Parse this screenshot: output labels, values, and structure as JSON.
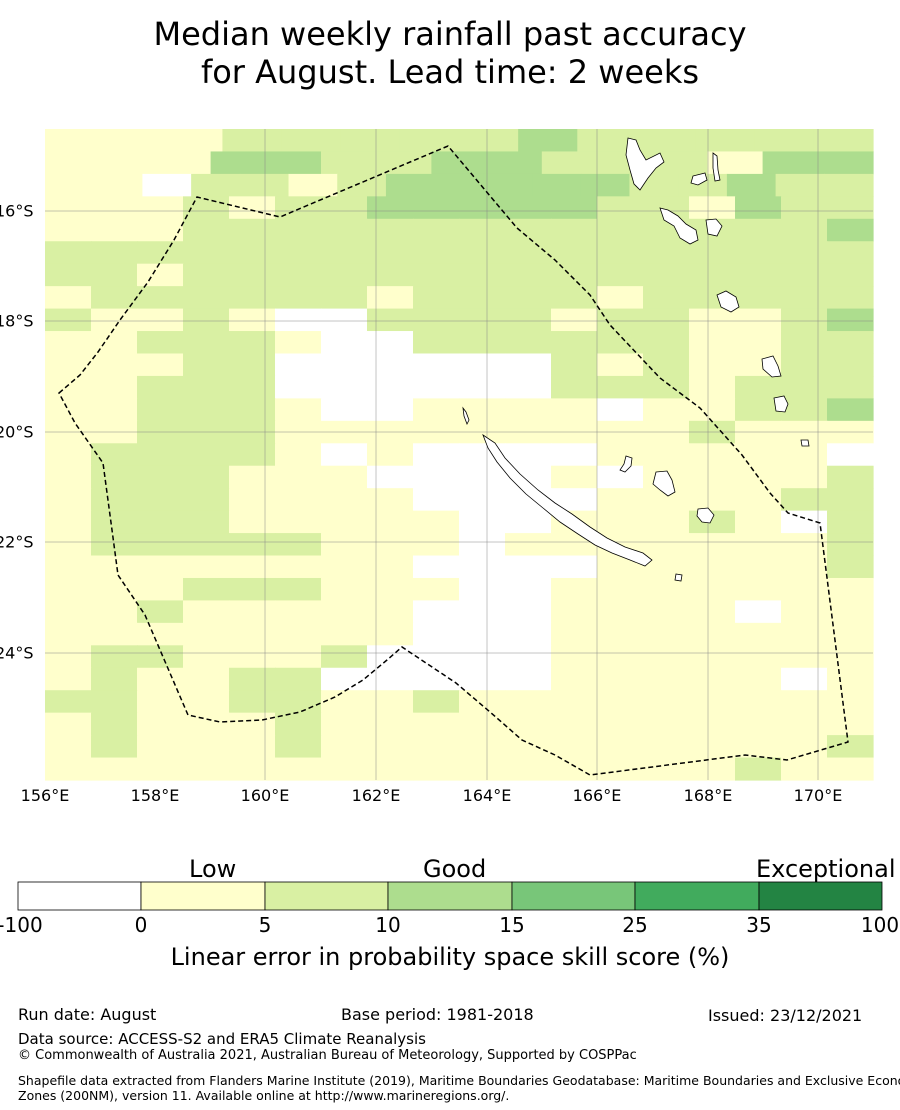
{
  "title": {
    "line1": "Median weekly rainfall past accuracy",
    "line2": "for August. Lead time: 2 weeks"
  },
  "map": {
    "lon_labels": [
      "156°E",
      "158°E",
      "160°E",
      "162°E",
      "164°E",
      "166°E",
      "168°E",
      "170°E"
    ],
    "lat_labels": [
      "16°S",
      "18°S",
      "20°S",
      "22°S",
      "24°S"
    ],
    "palette": [
      "#ffffff",
      "#ffffcc",
      "#d9f0a3",
      "#addd8e",
      "#78c679",
      "#41ab5d",
      "#238443"
    ],
    "grid_rows": [
      "11122222322222",
      "111332233222133",
      "11022123333322322",
      "111212233333221322",
      "111222222222222223",
      "222222222222222222",
      "221222222222222222",
      "122222212222122222",
      "211210022221221123",
      "112221002222221122",
      "111220000002121122",
      "112220000002221222",
      "112221001111011223",
      "112221111111112111",
      "122221010000111110",
      "122211100001011112",
      "122211110000111122",
      "122211111001112102",
      "122222111011111112",
      "111111110000111112",
      "111222111001111111",
      "112111110001111011",
      "111111110001111111",
      "122111200001111111",
      "121122000001111101",
      "221122112111111111",
      "121112111111111111",
      "121112111111111112",
      "111111111111111211"
    ]
  },
  "colorbar": {
    "category_labels": [
      "Low",
      "Good",
      "Exceptional"
    ],
    "ticks": [
      "-100",
      "0",
      "5",
      "10",
      "15",
      "25",
      "35",
      "100"
    ],
    "title": "Linear error in probability space skill score (%)"
  },
  "footer": {
    "run_date": "Run date: August",
    "base_period": "Base period: 1981-2018",
    "issued": "Issued: 23/12/2021",
    "data_source": "Data source: ACCESS-S2 and ERA5 Climate Reanalysis",
    "copyright": "© Commonwealth of Australia 2021, Australian Bureau of Meteorology, Supported by COSPPac",
    "shapefile_line1": "Shapefile data extracted from Flanders Marine Institute (2019), Maritime Boundaries Geodatabase: Maritime Boundaries and Exclusive Economic",
    "shapefile_line2": "Zones (200NM), version 11. Available online at http://www.marineregions.org/."
  }
}
